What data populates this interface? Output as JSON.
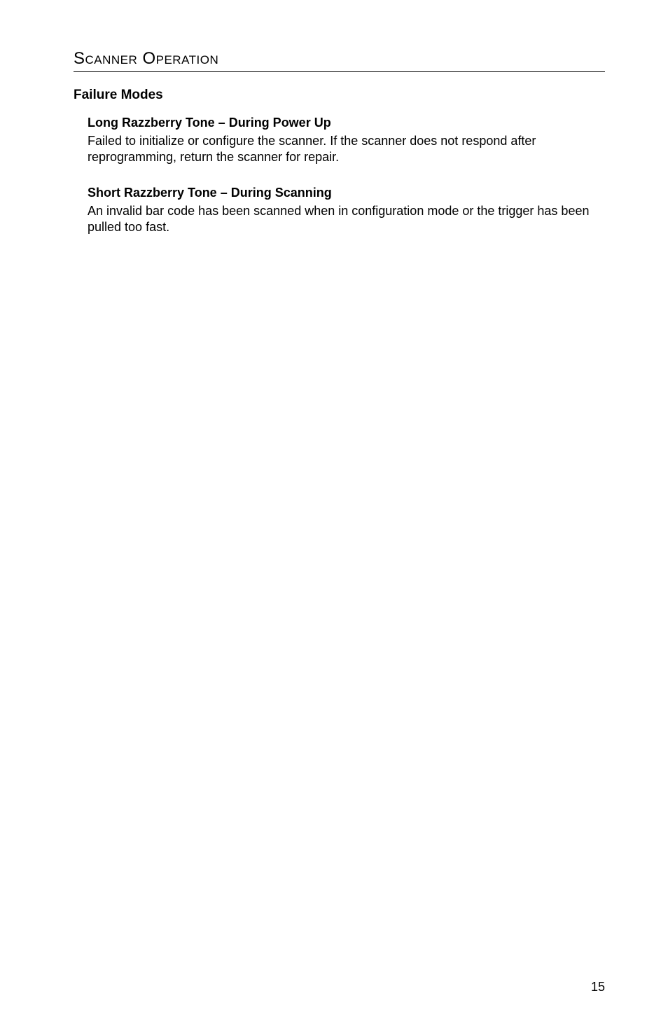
{
  "section_title": "Scanner Operation",
  "subhead": "Failure Modes",
  "topics": [
    {
      "title": "Long Razzberry Tone – During Power Up",
      "body": "Failed to initialize or configure the scanner.  If the scanner does not respond after reprogramming, return the scanner for repair."
    },
    {
      "title": "Short Razzberry Tone – During Scanning",
      "body": "An invalid bar code has been scanned when in configuration mode or the trigger has been pulled too fast."
    }
  ],
  "page_number": "15"
}
